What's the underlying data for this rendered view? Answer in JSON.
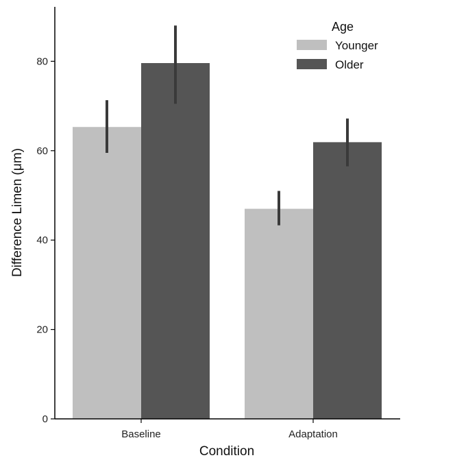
{
  "chart_data": {
    "type": "bar",
    "categories": [
      "Baseline",
      "Adaptation"
    ],
    "series": [
      {
        "name": "Younger",
        "color": "#bfbfbf",
        "values": [
          65.3,
          47.0
        ],
        "err_low": [
          59.5,
          43.3
        ],
        "err_high": [
          71.3,
          51.0
        ]
      },
      {
        "name": "Older",
        "color": "#555555",
        "values": [
          79.6,
          61.9
        ],
        "err_low": [
          70.5,
          56.5
        ],
        "err_high": [
          88.0,
          67.2
        ]
      }
    ],
    "xlabel": "Condition",
    "ylabel": "Difference Limen (μm)",
    "ylim": [
      0,
      92
    ],
    "yticks": [
      0,
      20,
      40,
      60,
      80
    ],
    "legend": {
      "title": "Age",
      "position": "top-right"
    },
    "grid": false,
    "errorbar_color": "#3a3a3a"
  }
}
